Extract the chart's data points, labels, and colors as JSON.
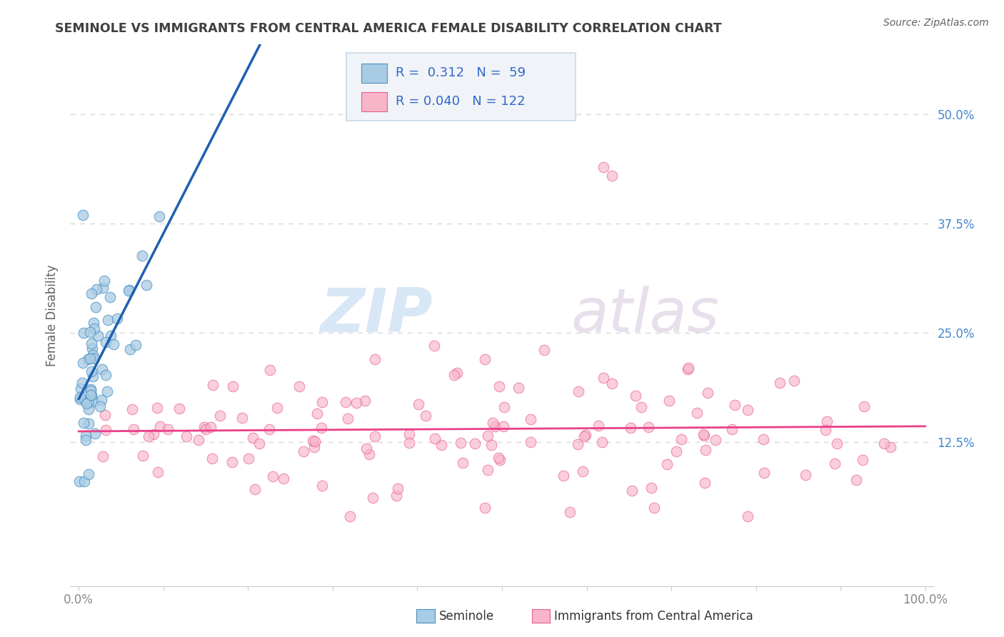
{
  "title": "SEMINOLE VS IMMIGRANTS FROM CENTRAL AMERICA FEMALE DISABILITY CORRELATION CHART",
  "source": "Source: ZipAtlas.com",
  "ylabel": "Female Disability",
  "watermark_zip": "ZIP",
  "watermark_atlas": "atlas",
  "legend_labels": [
    "Seminole",
    "Immigrants from Central America"
  ],
  "blue_R": 0.312,
  "blue_N": 59,
  "pink_R": 0.04,
  "pink_N": 122,
  "blue_color": "#a8cce4",
  "pink_color": "#f8b4c8",
  "blue_edge_color": "#4a90c4",
  "pink_edge_color": "#e86090",
  "blue_line_color": "#2060b0",
  "pink_line_color": "#e8408a",
  "dashed_line_color": "#c0c0c0",
  "xlim": [
    -0.01,
    1.01
  ],
  "ylim": [
    -0.04,
    0.58
  ],
  "yticks": [
    0.125,
    0.25,
    0.375,
    0.5
  ],
  "ytick_labels": [
    "12.5%",
    "25.0%",
    "37.5%",
    "50.0%"
  ],
  "background_color": "#ffffff",
  "grid_color": "#d8d8d8",
  "title_color": "#404040",
  "source_color": "#606060",
  "ylabel_color": "#606060",
  "tick_label_color": "#4488cc",
  "xtick_color": "#888888",
  "legend_box_color": "#f0f4f8",
  "legend_border_color": "#c8d8e8"
}
